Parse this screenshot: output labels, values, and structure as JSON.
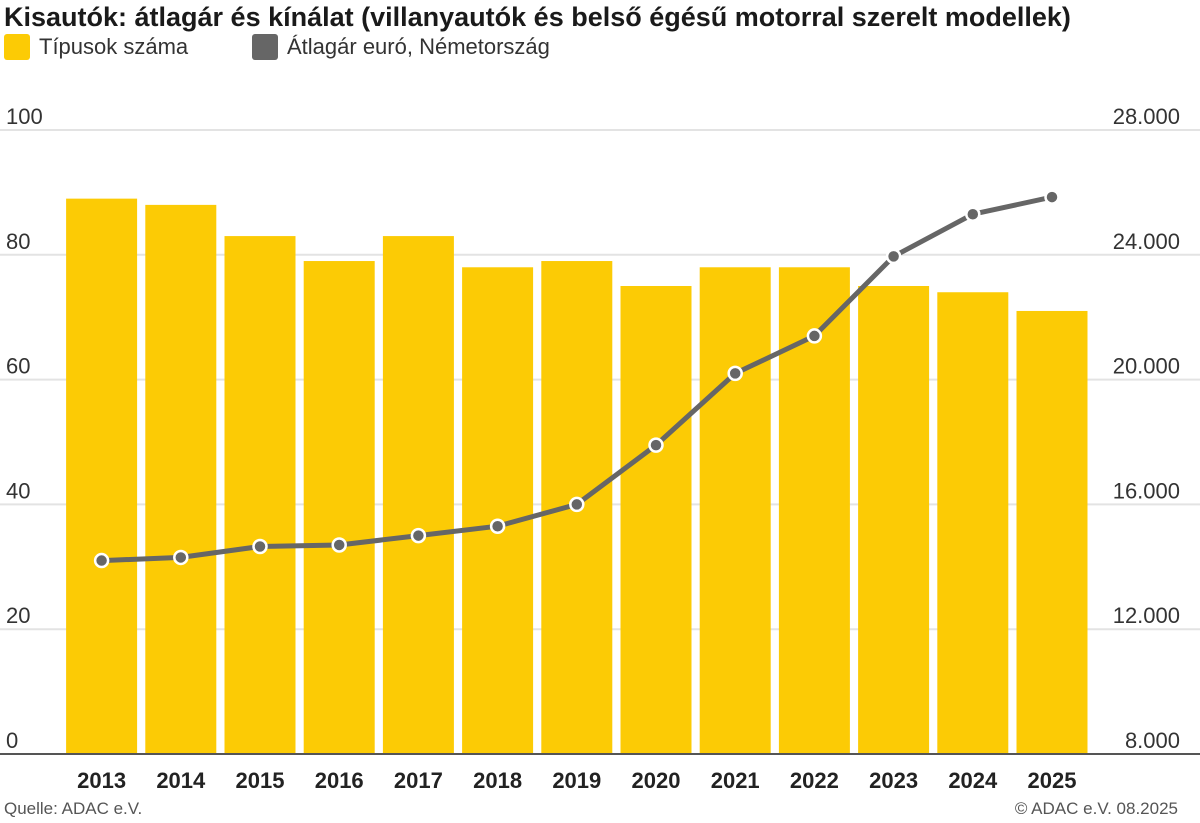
{
  "chart_data": {
    "type": "bar+line",
    "title": "Kisautók: átlagár és kínálat (villanyautók és belső égésű motorral szerelt modellek)",
    "categories": [
      "2013",
      "2014",
      "2015",
      "2016",
      "2017",
      "2018",
      "2019",
      "2020",
      "2021",
      "2022",
      "2023",
      "2024",
      "2025"
    ],
    "series": [
      {
        "name": "Típusok száma",
        "type": "bar",
        "axis": "left",
        "color": "#FCCB05",
        "values": [
          89,
          88,
          83,
          79,
          83,
          78,
          79,
          75,
          78,
          78,
          75,
          74,
          71
        ]
      },
      {
        "name": "Átlagár euró, Németország",
        "type": "line",
        "axis": "right",
        "color": "#666666",
        "values": [
          14200,
          14300,
          14650,
          14700,
          15000,
          15300,
          16000,
          17900,
          20200,
          21400,
          23950,
          25300,
          25850
        ]
      }
    ],
    "y_left": {
      "ylim": [
        0,
        100
      ],
      "ticks": [
        "0",
        "20",
        "40",
        "60",
        "80",
        "100"
      ]
    },
    "y_right": {
      "ylim": [
        8000,
        28000
      ],
      "ticks": [
        "8.000",
        "12.000",
        "16.000",
        "20.000",
        "24.000",
        "28.000"
      ]
    },
    "grid": true,
    "legend": "top-left"
  },
  "footer": {
    "source": "Quelle: ADAC e.V.",
    "copyright": "© ADAC e.V. 08.2025"
  }
}
